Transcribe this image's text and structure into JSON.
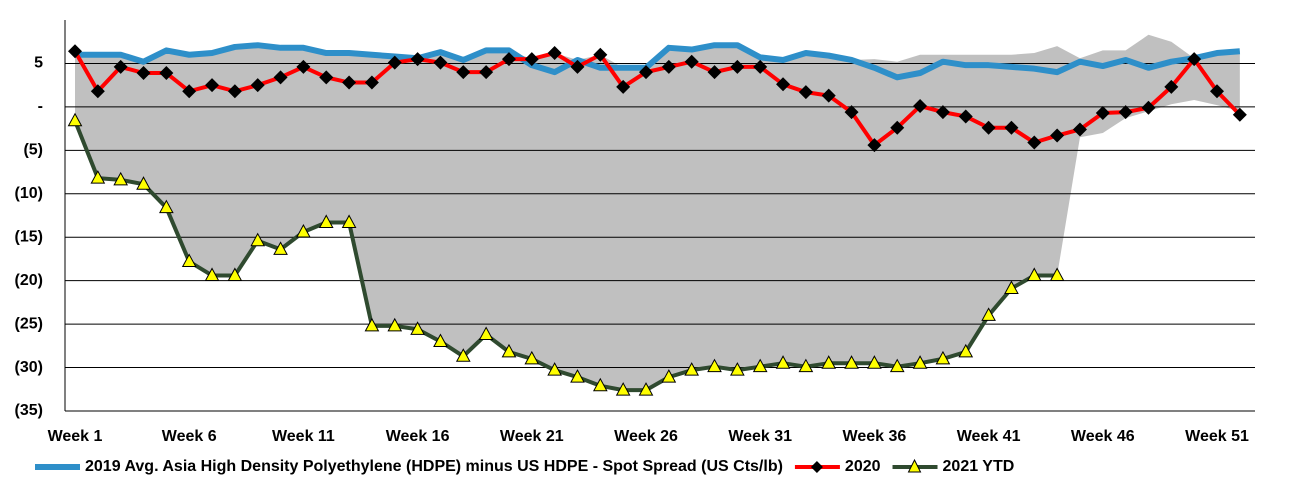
{
  "chart_data": {
    "type": "line",
    "categories": [
      "Week 1",
      null,
      null,
      null,
      null,
      "Week 6",
      null,
      null,
      null,
      null,
      "Week 11",
      null,
      null,
      null,
      null,
      "Week 16",
      null,
      null,
      null,
      null,
      "Week 21",
      null,
      null,
      null,
      null,
      "Week 26",
      null,
      null,
      null,
      null,
      "Week 31",
      null,
      null,
      null,
      null,
      "Week 36",
      null,
      null,
      null,
      null,
      "Week 41",
      null,
      null,
      null,
      null,
      "Week 46",
      null,
      null,
      null,
      null,
      "Week 51",
      null
    ],
    "band": {
      "color": "#c0c0c0",
      "upper": [
        6.4,
        6,
        6,
        5.2,
        6.5,
        6,
        6.2,
        6.9,
        7.1,
        6.8,
        6.8,
        6.2,
        6.2,
        6,
        5.8,
        5.6,
        6.3,
        5.4,
        6.5,
        6.5,
        5.5,
        6.2,
        5.4,
        6.0,
        4.5,
        4.5,
        6.8,
        6.6,
        7.1,
        7.1,
        5.7,
        5.4,
        6.2,
        5.9,
        5.4,
        5.5,
        5.2,
        6.0,
        6.0,
        6.0,
        6.0,
        6.0,
        6.2,
        7.0,
        5.6,
        6.5,
        6.5,
        8.3,
        7.5,
        5.6,
        6.2,
        6.4
      ],
      "lower": [
        -1.6,
        -8.2,
        -8.4,
        -8.9,
        -11.6,
        -17.8,
        -19.4,
        -19.4,
        -15.4,
        -16.4,
        -14.4,
        -13.3,
        -13.3,
        -25.2,
        -25.2,
        -25.6,
        -27.0,
        -28.7,
        -26.2,
        -28.2,
        -29.0,
        -30.3,
        -31.1,
        -32.1,
        -32.6,
        -32.6,
        -31.1,
        -30.3,
        -29.9,
        -30.3,
        -29.9,
        -29.5,
        -29.9,
        -29.5,
        -29.5,
        -29.5,
        -29.9,
        -29.5,
        -29.0,
        -28.2,
        -24.0,
        -20.9,
        -19.4,
        -19.4,
        -3.5,
        -3.0,
        -1.3,
        -0.5,
        0.3,
        0.8,
        0.2,
        -0.5
      ]
    },
    "series": [
      {
        "name": "2019 Avg. Asia High Density Polyethylene (HDPE) minus US HDPE - Spot Spread (US Cts/lb)",
        "color": "#2e8fc9",
        "marker": "none",
        "values": [
          6.0,
          6.0,
          6.0,
          5.2,
          6.5,
          6.0,
          6.2,
          6.9,
          7.1,
          6.8,
          6.8,
          6.2,
          6.2,
          6.0,
          5.8,
          5.6,
          6.3,
          5.4,
          6.5,
          6.5,
          4.8,
          4.0,
          5.4,
          4.5,
          4.5,
          4.5,
          6.8,
          6.6,
          7.1,
          7.1,
          5.7,
          5.4,
          6.2,
          5.9,
          5.4,
          4.5,
          3.4,
          3.9,
          5.2,
          4.8,
          4.8,
          4.6,
          4.4,
          4.0,
          5.2,
          4.7,
          5.4,
          4.5,
          5.2,
          5.6,
          6.2,
          6.4
        ]
      },
      {
        "name": "2020",
        "color": "#ff0000",
        "marker": "diamond",
        "marker_color": "#000000",
        "values": [
          6.4,
          1.8,
          4.6,
          3.9,
          3.9,
          1.8,
          2.5,
          1.8,
          2.5,
          3.4,
          4.6,
          3.4,
          2.8,
          2.8,
          5.1,
          5.5,
          5.1,
          4.0,
          4.0,
          5.5,
          5.5,
          6.2,
          4.6,
          6.0,
          2.3,
          4.0,
          4.6,
          5.2,
          4.0,
          4.6,
          4.6,
          2.6,
          1.7,
          1.3,
          -0.6,
          -4.4,
          -2.4,
          0.1,
          -0.6,
          -1.1,
          -2.4,
          -2.4,
          -4.1,
          -3.3,
          -2.6,
          -0.7,
          -0.6,
          -0.1,
          2.3,
          5.5,
          1.8,
          -0.9
        ]
      },
      {
        "name": "2021 YTD",
        "color": "#2f4a2f",
        "marker": "triangle",
        "marker_color": "#ffff00",
        "values": [
          -1.6,
          -8.2,
          -8.4,
          -8.9,
          -11.6,
          -17.8,
          -19.4,
          -19.4,
          -15.4,
          -16.4,
          -14.4,
          -13.3,
          -13.3,
          -25.2,
          -25.2,
          -25.6,
          -27.0,
          -28.7,
          -26.2,
          -28.2,
          -29.0,
          -30.3,
          -31.1,
          -32.1,
          -32.6,
          -32.6,
          -31.1,
          -30.3,
          -29.9,
          -30.3,
          -29.9,
          -29.5,
          -29.9,
          -29.5,
          -29.5,
          -29.5,
          -29.9,
          -29.5,
          -29.0,
          -28.2,
          -24.0,
          -20.9,
          -19.4,
          -19.4,
          null,
          null,
          null,
          null,
          null,
          null,
          null,
          null
        ]
      }
    ],
    "ylim": [
      -35,
      10
    ],
    "yticks": [
      5,
      {
        "value": 0,
        "label": "-"
      },
      {
        "value": -5,
        "label": "(5)"
      },
      {
        "value": -10,
        "label": "(10)"
      },
      {
        "value": -15,
        "label": "(15)"
      },
      {
        "value": -20,
        "label": "(20)"
      },
      {
        "value": -25,
        "label": "(25)"
      },
      {
        "value": -30,
        "label": "(30)"
      },
      {
        "value": -35,
        "label": "(35)"
      }
    ],
    "grid": true,
    "legend": "bottom"
  }
}
